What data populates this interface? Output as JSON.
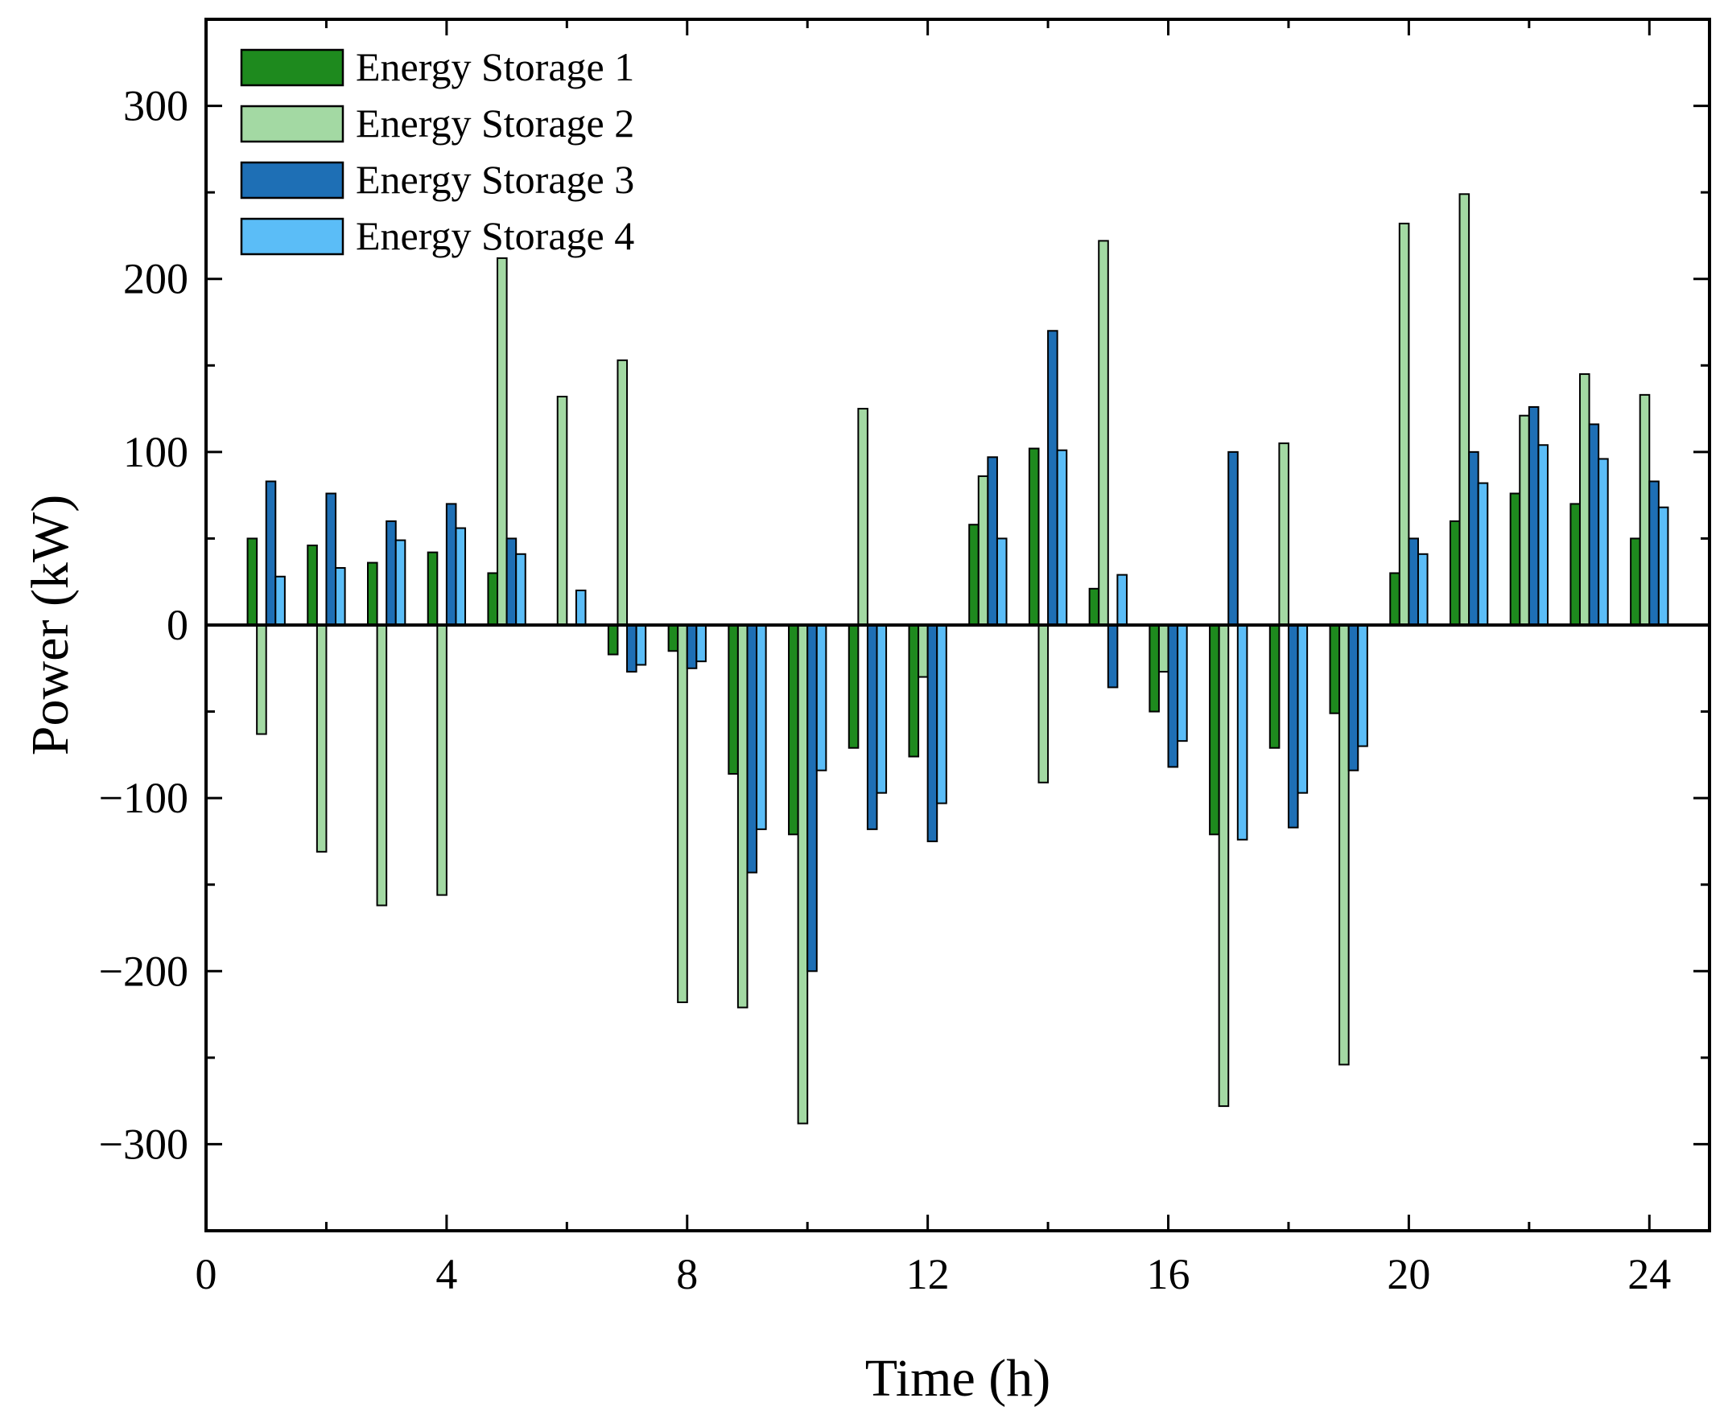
{
  "chart_data": {
    "type": "bar",
    "title": "",
    "xlabel": "Time (h)",
    "ylabel": "Power (kW)",
    "xlim": [
      0,
      25
    ],
    "ylim": [
      -350,
      350
    ],
    "x_ticks": [
      0,
      4,
      8,
      12,
      16,
      20,
      24
    ],
    "x_tick_labels": [
      "0",
      "4",
      "8",
      "12",
      "16",
      "20",
      "24"
    ],
    "y_ticks": [
      -300,
      -200,
      -100,
      0,
      100,
      200,
      300
    ],
    "y_tick_labels": [
      "−300",
      "−200",
      "−100",
      "0",
      "100",
      "200",
      "300"
    ],
    "legend_position": "top-left",
    "categories": [
      "1",
      "2",
      "3",
      "4",
      "5",
      "6",
      "7",
      "8",
      "9",
      "10",
      "11",
      "12",
      "13",
      "14",
      "15",
      "16",
      "17",
      "18",
      "19",
      "20",
      "21",
      "22",
      "23",
      "24"
    ],
    "series": [
      {
        "name": "Energy Storage 1",
        "color": "#1e8a1e",
        "values": [
          50,
          46,
          36,
          42,
          30,
          0,
          -17,
          -15,
          -86,
          -121,
          -71,
          -76,
          58,
          102,
          21,
          -50,
          -121,
          -71,
          -51,
          30,
          60,
          76,
          70,
          50
        ]
      },
      {
        "name": "Energy Storage 2",
        "color": "#a3d9a3",
        "values": [
          -63,
          -131,
          -162,
          -156,
          212,
          132,
          153,
          -218,
          -221,
          -288,
          125,
          -30,
          86,
          -91,
          222,
          -27,
          -278,
          105,
          -254,
          232,
          249,
          121,
          145,
          133
        ]
      },
      {
        "name": "Energy Storage 3",
        "color": "#1e6fb5",
        "values": [
          83,
          76,
          60,
          70,
          50,
          0,
          -27,
          -25,
          -143,
          -200,
          -118,
          -125,
          97,
          170,
          -36,
          -82,
          100,
          -117,
          -84,
          50,
          100,
          126,
          116,
          83
        ]
      },
      {
        "name": "Energy Storage 4",
        "color": "#5bbdf7",
        "values": [
          28,
          33,
          49,
          56,
          41,
          20,
          -23,
          -21,
          -118,
          -84,
          -97,
          -103,
          50,
          101,
          29,
          -67,
          -124,
          -97,
          -70,
          41,
          82,
          104,
          96,
          68
        ]
      }
    ]
  }
}
